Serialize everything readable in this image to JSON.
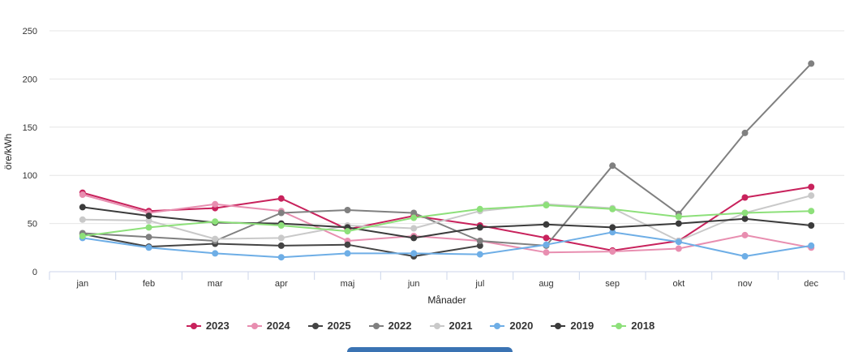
{
  "chart_data": {
    "type": "line",
    "title": "",
    "xlabel": "Månader",
    "ylabel": "öre/kWh",
    "ylim": [
      0,
      250
    ],
    "yticks": [
      0,
      50,
      100,
      150,
      200,
      250
    ],
    "grid": true,
    "legend_position": "bottom",
    "categories": [
      "jan",
      "feb",
      "mar",
      "apr",
      "maj",
      "jun",
      "jul",
      "aug",
      "sep",
      "okt",
      "nov",
      "dec"
    ],
    "series": [
      {
        "name": "2023",
        "color": "#c8225c",
        "values": [
          82,
          63,
          66,
          76,
          44,
          58,
          48,
          35,
          22,
          32,
          77,
          88
        ]
      },
      {
        "name": "2024",
        "color": "#e88eb0",
        "values": [
          80,
          61,
          70,
          63,
          32,
          37,
          32,
          20,
          21,
          24,
          38,
          25
        ]
      },
      {
        "name": "2025",
        "color": "#444444",
        "values": [
          39,
          26,
          29,
          27,
          28,
          16,
          27,
          null,
          null,
          null,
          null,
          null
        ]
      },
      {
        "name": "2022",
        "color": "#808080",
        "values": [
          40,
          36,
          32,
          61,
          64,
          61,
          32,
          27,
          110,
          60,
          144,
          216
        ]
      },
      {
        "name": "2021",
        "color": "#c9c9c9",
        "values": [
          54,
          53,
          34,
          35,
          48,
          45,
          63,
          70,
          66,
          32,
          61,
          79
        ]
      },
      {
        "name": "2020",
        "color": "#6eaee6",
        "values": [
          35,
          25,
          19,
          15,
          19,
          19,
          18,
          28,
          41,
          31,
          16,
          27
        ]
      },
      {
        "name": "2019",
        "color": "#3b3b3b",
        "values": [
          67,
          58,
          51,
          50,
          46,
          35,
          46,
          49,
          46,
          50,
          55,
          48
        ]
      },
      {
        "name": "2018",
        "color": "#8de07a",
        "values": [
          37,
          46,
          52,
          48,
          42,
          56,
          65,
          69,
          65,
          57,
          61,
          63
        ]
      }
    ]
  },
  "bottom_bar_color": "#3a73b3"
}
